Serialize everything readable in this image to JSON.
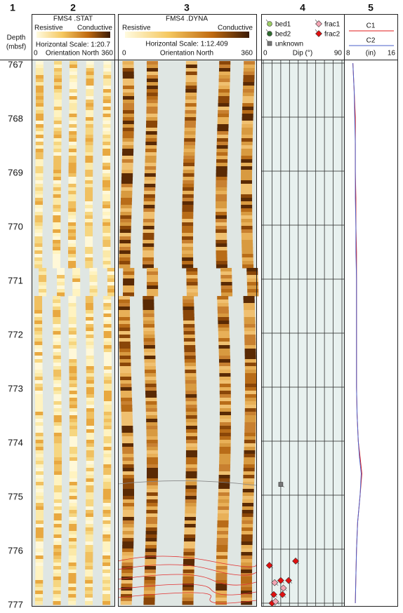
{
  "columns": [
    "1",
    "2",
    "3",
    "4",
    "5"
  ],
  "depth": {
    "label": "Depth",
    "unit": "(mbsf)",
    "ticks": [
      767,
      768,
      769,
      770,
      771,
      772,
      773,
      774,
      775,
      776,
      777
    ],
    "lim": [
      767,
      777
    ]
  },
  "stat": {
    "title": "FMS4 .STAT",
    "left": "Resistive",
    "right": "Conductive",
    "scale": "Horizontal Scale: 1:20.7",
    "orient_min": "0",
    "orient": "Orientation North",
    "orient_max": "360"
  },
  "dyna": {
    "title": "FMS4 .DYNA",
    "left": "Resistive",
    "right": "Conductive",
    "scale": "Horizontal Scale:  1:12.409",
    "orient_min": "0",
    "orient": "Orientation North",
    "orient_max": "360"
  },
  "dips": {
    "legend": [
      {
        "name": "bed1",
        "color": "#9ccc65",
        "shape": "circle"
      },
      {
        "name": "bed2",
        "color": "#2e6b2e",
        "shape": "circle"
      },
      {
        "name": "unknown",
        "color": "#777777",
        "shape": "square"
      },
      {
        "name": "frac1",
        "color": "#f4a6b4",
        "shape": "diamond"
      },
      {
        "name": "frac2",
        "color": "#e01010",
        "shape": "diamond"
      }
    ],
    "axis_label": "Dip (°)",
    "xlim": [
      0,
      90
    ],
    "xticks": [
      0,
      90
    ],
    "grid": [
      0,
      10,
      20,
      30,
      40,
      50,
      60,
      70,
      80,
      90
    ],
    "points": [
      {
        "type": "unknown",
        "depth": 774.8,
        "dip": 20
      },
      {
        "type": "frac2",
        "depth": 776.3,
        "dip": 7
      },
      {
        "type": "frac2",
        "depth": 776.22,
        "dip": 37
      },
      {
        "type": "frac2",
        "depth": 776.58,
        "dip": 20
      },
      {
        "type": "frac2",
        "depth": 776.58,
        "dip": 29
      },
      {
        "type": "frac2",
        "depth": 776.84,
        "dip": 12
      },
      {
        "type": "frac2",
        "depth": 776.84,
        "dip": 22
      },
      {
        "type": "frac2",
        "depth": 777.0,
        "dip": 10
      },
      {
        "type": "frac1",
        "depth": 776.62,
        "dip": 13
      },
      {
        "type": "frac1",
        "depth": 776.72,
        "dip": 23
      },
      {
        "type": "frac1",
        "depth": 776.97,
        "dip": 14
      }
    ]
  },
  "caliper": {
    "unit": "(in)",
    "xlim": [
      8,
      16
    ],
    "xticks": [
      8,
      16
    ],
    "depths": [
      767,
      767.5,
      768,
      768.5,
      769,
      769.5,
      770,
      770.5,
      771,
      771.5,
      772,
      772.5,
      773,
      773.5,
      774,
      774.3,
      774.6,
      775,
      775.5,
      776,
      776.5,
      777
    ],
    "series": [
      {
        "name": "C1",
        "color": "#e01818",
        "values": [
          8.9,
          9.1,
          9.3,
          9.3,
          9.3,
          9.4,
          9.4,
          9.5,
          9.5,
          9.5,
          9.5,
          9.5,
          9.5,
          9.6,
          9.8,
          10.1,
          10.4,
          10.1,
          9.7,
          9.5,
          9.4,
          9.3
        ]
      },
      {
        "name": "C2",
        "color": "#4a5fc8",
        "values": [
          8.9,
          9.1,
          9.2,
          9.3,
          9.3,
          9.3,
          9.4,
          9.4,
          9.5,
          9.5,
          9.5,
          9.5,
          9.5,
          9.6,
          9.8,
          10.0,
          10.3,
          10.1,
          9.7,
          9.5,
          9.4,
          9.3
        ]
      }
    ]
  }
}
